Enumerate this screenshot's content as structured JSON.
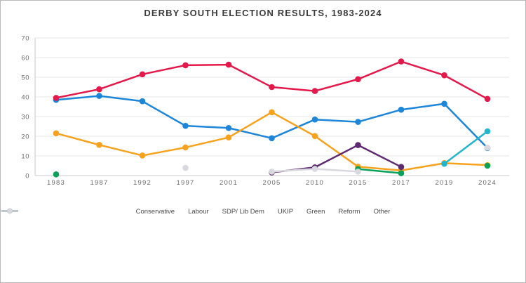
{
  "window": {
    "title": "DERBY SOUTH ELECTION RESULTS, 1983-2024"
  },
  "chart_data": {
    "type": "line",
    "title": "DERBY SOUTH ELECTION RESULTS, 1983-2024",
    "categories": [
      "1983",
      "1987",
      "1992",
      "1997",
      "2001",
      "2005",
      "2010",
      "2015",
      "2017",
      "2019",
      "2024"
    ],
    "xlabel": "",
    "ylabel": "",
    "ylim": [
      0,
      70
    ],
    "ytick_step": 10,
    "grid": true,
    "legend_position": "bottom",
    "axis_text_color": "#6b6b6b",
    "gridline_color": "#e4e4e4",
    "axis_line_color": "#c9c9c9",
    "series": [
      {
        "name": "Conservative",
        "color": "#1d86d8",
        "values": [
          38.5,
          40.5,
          37.8,
          25.3,
          24.2,
          19,
          28.5,
          27.3,
          33.5,
          36.5,
          14
        ]
      },
      {
        "name": "Labour",
        "color": "#e4194b",
        "values": [
          39.5,
          43.9,
          51.5,
          56.1,
          56.4,
          45,
          43,
          49,
          58,
          51,
          39
        ]
      },
      {
        "name": "SDP/ Lib Dem",
        "color": "#f6a21d",
        "values": [
          21.5,
          15.6,
          10.2,
          14.3,
          19.4,
          32.2,
          20.1,
          4.5,
          2.6,
          6.3,
          5.3
        ]
      },
      {
        "name": "UKIP",
        "color": "#5f2b70",
        "values": [
          null,
          null,
          null,
          null,
          null,
          1.6,
          4.2,
          15.5,
          4.4,
          null,
          null
        ]
      },
      {
        "name": "Green",
        "color": "#0aa15a",
        "values": [
          0.6,
          null,
          null,
          null,
          null,
          null,
          null,
          3.3,
          1.2,
          null,
          5
        ]
      },
      {
        "name": "Reform",
        "color": "#22b5cc",
        "values": [
          null,
          null,
          null,
          null,
          null,
          null,
          null,
          null,
          null,
          6,
          22.5
        ]
      },
      {
        "name": "Other",
        "color": "#d8d8de",
        "values": [
          null,
          null,
          null,
          3.9,
          null,
          2,
          3.4,
          2,
          null,
          null,
          14.2
        ]
      }
    ]
  }
}
